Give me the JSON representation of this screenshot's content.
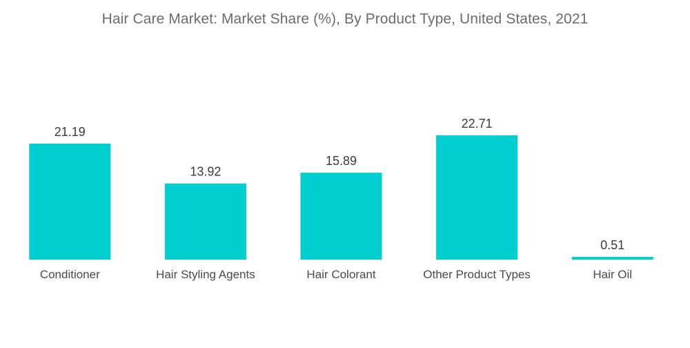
{
  "chart_data": {
    "type": "bar",
    "title": "Hair Care Market: Market Share (%), By Product Type, United States, 2021",
    "categories": [
      "Conditioner",
      "Hair Styling Agents",
      "Hair Colorant",
      "Other Product Types",
      "Hair Oil"
    ],
    "values": [
      21.19,
      13.92,
      15.89,
      22.71,
      0.51
    ],
    "xlabel": "",
    "ylabel": "",
    "grid": false,
    "legend": "none",
    "data_labels": "above bars",
    "bar_color": "#00CED1"
  }
}
